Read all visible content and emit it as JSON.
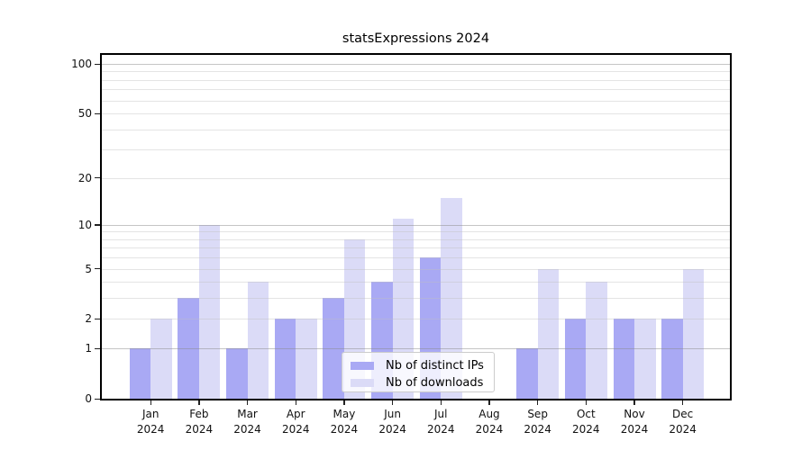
{
  "chart_data": {
    "type": "bar",
    "title": "statsExpressions 2024",
    "categories": [
      "Jan",
      "Feb",
      "Mar",
      "Apr",
      "May",
      "Jun",
      "Jul",
      "Aug",
      "Sep",
      "Oct",
      "Nov",
      "Dec"
    ],
    "category_year": "2024",
    "series": [
      {
        "name": "Nb of distinct IPs",
        "color": "#a9a9f4",
        "values": [
          1,
          3,
          1,
          2,
          3,
          4,
          6,
          0,
          1,
          2,
          2,
          2
        ]
      },
      {
        "name": "Nb of downloads",
        "color": "#dbdbf7",
        "values": [
          2,
          10,
          4,
          2,
          8,
          11,
          15,
          0,
          5,
          4,
          2,
          5
        ]
      }
    ],
    "y_axis": {
      "scale": "log1p",
      "tick_values": [
        100,
        50,
        20,
        10,
        5,
        2,
        1,
        0
      ],
      "tick_labels": [
        "100",
        "50",
        "20",
        "10",
        "5",
        "2",
        "1",
        "0"
      ],
      "major_grid_values": [
        1,
        10,
        100
      ],
      "minor_grid_values": [
        2,
        3,
        4,
        5,
        6,
        7,
        8,
        9,
        20,
        30,
        40,
        50,
        60,
        70,
        80,
        90
      ]
    },
    "legend": {
      "position": "lower center",
      "entries": [
        "Nb of distinct IPs",
        "Nb of downloads"
      ]
    },
    "grid": true
  },
  "colors": {
    "bar_distinct_ips": "#a9a9f4",
    "bar_downloads": "#dbdbf7",
    "spine": "#000000",
    "text": "#111111",
    "legend_border": "#cccccc"
  }
}
